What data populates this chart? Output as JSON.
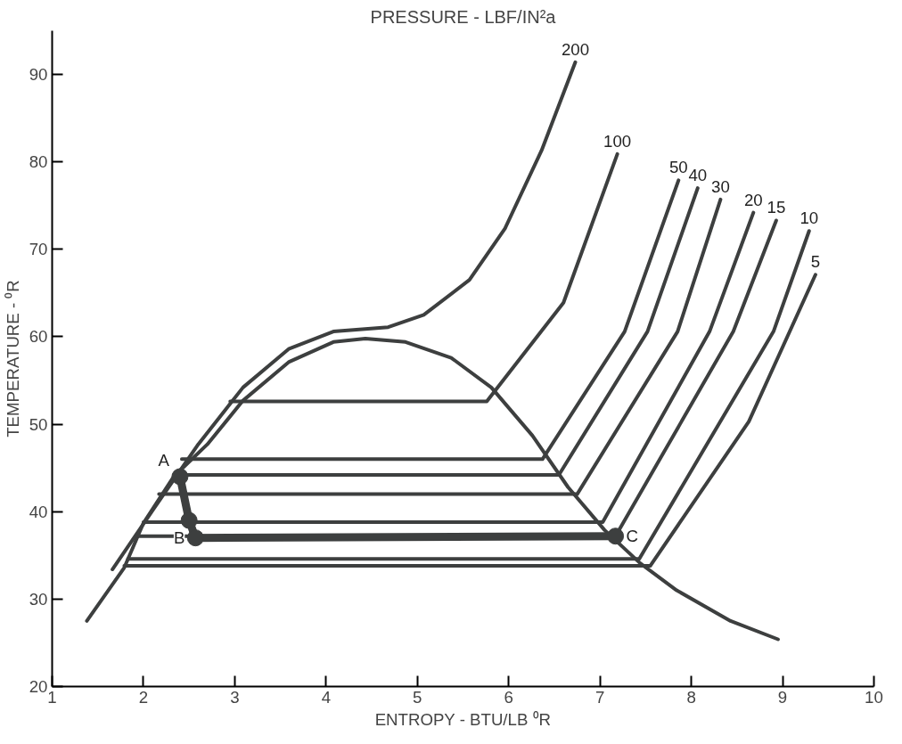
{
  "chart_data": {
    "type": "line",
    "title": "PRESSURE - LBF/IN²a",
    "xlabel": "ENTROPY - BTU/LB ⁰R",
    "ylabel": "TEMPERATURE - ⁰R",
    "xlim": [
      1,
      10
    ],
    "ylim": [
      20,
      95
    ],
    "xticks": [
      1,
      2,
      3,
      4,
      5,
      6,
      7,
      8,
      9,
      10
    ],
    "yticks": [
      20,
      30,
      40,
      50,
      60,
      70,
      80,
      90
    ],
    "grid": false,
    "line_style": "solid",
    "series": [
      {
        "color": "#3d3f3f",
        "x": [
          1.38,
          1.79,
          2.0,
          2.33,
          2.7,
          3.09,
          3.59,
          4.08,
          4.43,
          4.87,
          5.37,
          5.81,
          6.26,
          6.65,
          7.05,
          7.44,
          7.84,
          8.43,
          8.95
        ],
        "values": [
          27.5,
          33.6,
          38.7,
          44.0,
          47.7,
          52.7,
          57.1,
          59.4,
          59.8,
          59.4,
          57.6,
          54.2,
          48.7,
          42.8,
          37.9,
          34.1,
          31.0,
          27.5,
          25.4
        ]
      },
      {
        "name": "200",
        "color": "#3d3f3f",
        "x": [
          1.66,
          2.11,
          2.6,
          3.09,
          3.59,
          4.08,
          4.68,
          5.07,
          5.57,
          5.96,
          6.36,
          6.73
        ],
        "values": [
          33.4,
          40.3,
          47.7,
          54.2,
          58.6,
          60.6,
          61.1,
          62.5,
          66.5,
          72.4,
          81.3,
          91.4
        ]
      },
      {
        "name": "100",
        "color": "#3d3f3f",
        "x": [
          2.95,
          5.76,
          6.6,
          7.19
        ],
        "values": [
          52.6,
          52.6,
          63.9,
          80.9
        ]
      },
      {
        "name": "50",
        "color": "#3d3f3f",
        "x": [
          2.42,
          6.37,
          7.27,
          7.86
        ],
        "values": [
          46.0,
          46.0,
          60.6,
          77.9
        ]
      },
      {
        "name": "40",
        "color": "#3d3f3f",
        "x": [
          2.33,
          6.55,
          7.52,
          8.07
        ],
        "values": [
          44.2,
          44.2,
          60.6,
          77.0
        ]
      },
      {
        "name": "30",
        "color": "#3d3f3f",
        "x": [
          2.17,
          6.75,
          7.85,
          8.32
        ],
        "values": [
          42.0,
          42.0,
          60.6,
          75.7
        ]
      },
      {
        "name": "20",
        "color": "#3d3f3f",
        "x": [
          2.0,
          7.03,
          8.2,
          8.68
        ],
        "values": [
          38.8,
          38.8,
          60.6,
          74.2
        ]
      },
      {
        "name": "15",
        "color": "#3d3f3f",
        "x": [
          1.92,
          7.17,
          8.46,
          8.93
        ],
        "values": [
          37.2,
          37.2,
          60.6,
          73.3
        ]
      },
      {
        "name": "10",
        "color": "#3d3f3f",
        "x": [
          1.83,
          7.43,
          8.9,
          9.29
        ],
        "values": [
          34.6,
          34.6,
          60.6,
          72.1
        ]
      },
      {
        "name": "5",
        "color": "#3d3f3f",
        "x": [
          1.79,
          7.55,
          8.63,
          9.36
        ],
        "values": [
          33.8,
          33.8,
          50.3,
          67.1
        ]
      },
      {
        "color": "#3d3f3f",
        "marker": "circle",
        "x": [
          2.4,
          2.5,
          2.57,
          7.17
        ],
        "values": [
          44.0,
          39.0,
          37.0,
          37.2
        ]
      }
    ],
    "annotations": [
      {
        "text": "A",
        "x": 2.4,
        "y": 44.0
      },
      {
        "text": "B",
        "x": 2.57,
        "y": 37.0
      },
      {
        "text": "C",
        "x": 7.17,
        "y": 37.2
      }
    ]
  }
}
